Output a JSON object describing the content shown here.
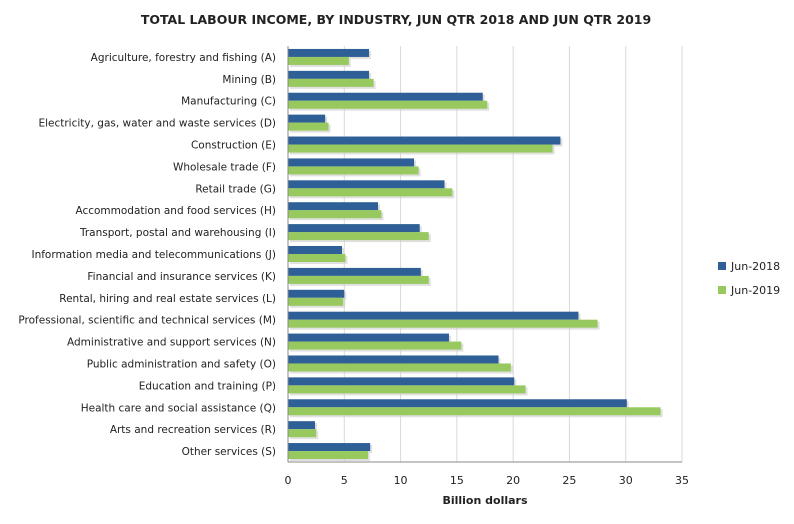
{
  "chart_data": {
    "type": "bar",
    "orientation": "horizontal",
    "title": "TOTAL LABOUR INCOME, BY INDUSTRY, JUN QTR 2018 AND JUN QTR 2019",
    "xlabel": "Billion dollars",
    "ylabel": "",
    "xlim": [
      0,
      35
    ],
    "xticks": [
      "0",
      "5",
      "10",
      "15",
      "20",
      "25",
      "30",
      "35"
    ],
    "grid": "vertical",
    "legend_position": "right",
    "categories": [
      "Agriculture, forestry and fishing (A)",
      "Mining (B)",
      "Manufacturing (C)",
      "Electricity, gas, water and waste services (D)",
      "Construction (E)",
      "Wholesale trade (F)",
      "Retail trade (G)",
      "Accommodation and food services (H)",
      "Transport, postal and warehousing (I)",
      "Information media and telecommunications (J)",
      "Financial and insurance services (K)",
      "Rental, hiring and real estate services (L)",
      "Professional, scientific and technical services (M)",
      "Administrative and support services (N)",
      "Public administration and safety (O)",
      "Education and training (P)",
      "Health care and social assistance (Q)",
      "Arts and recreation services (R)",
      "Other services (S)"
    ],
    "series": [
      {
        "name": "Jun-2018",
        "color": "#2e5f96",
        "values": [
          7.2,
          7.2,
          17.3,
          3.3,
          24.2,
          11.2,
          13.9,
          8.0,
          11.7,
          4.8,
          11.8,
          5.0,
          25.8,
          14.3,
          18.7,
          20.1,
          30.1,
          2.4,
          7.3
        ]
      },
      {
        "name": "Jun-2019",
        "color": "#97c95f",
        "values": [
          5.4,
          7.6,
          17.7,
          3.6,
          23.5,
          11.6,
          14.6,
          8.3,
          12.5,
          5.1,
          12.5,
          4.9,
          27.5,
          15.4,
          19.8,
          21.1,
          33.1,
          2.5,
          7.1
        ]
      }
    ]
  }
}
